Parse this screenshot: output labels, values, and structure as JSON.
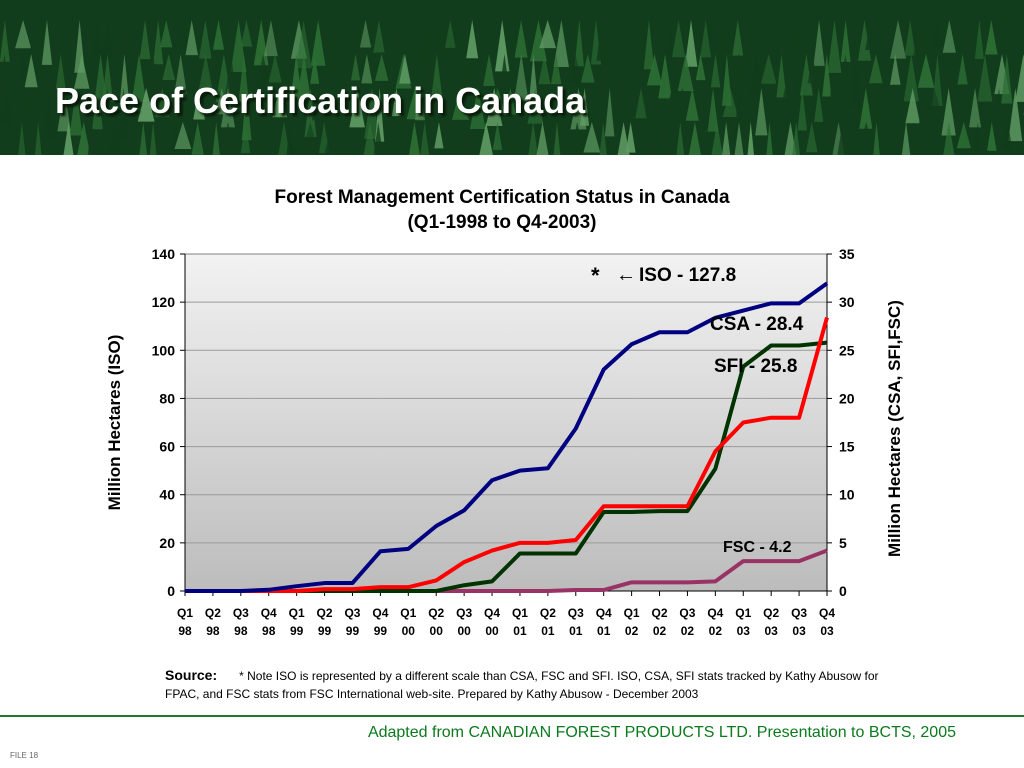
{
  "slide": {
    "title": "Pace of Certification in Canada",
    "header_colors": {
      "dark": "#123d1c",
      "mid": "#2d6e35",
      "light": "#5f9a63"
    }
  },
  "chart_data": {
    "type": "line",
    "title": "Forest Management Certification Status in Canada",
    "subtitle": "(Q1-1998 to Q4-2003)",
    "ylabel_left": "Million Hectares (ISO)",
    "ylabel_right": "Million Hectares (CSA, SFI,FSC)",
    "ylim_left": [
      0,
      140
    ],
    "ylim_right": [
      0,
      35
    ],
    "yticks_left": [
      0,
      20,
      40,
      60,
      80,
      100,
      120,
      140
    ],
    "yticks_right": [
      0,
      5,
      10,
      15,
      20,
      25,
      30,
      35
    ],
    "categories": [
      [
        "Q1",
        "98"
      ],
      [
        "Q2",
        "98"
      ],
      [
        "Q3",
        "98"
      ],
      [
        "Q4",
        "98"
      ],
      [
        "Q1",
        "99"
      ],
      [
        "Q2",
        "99"
      ],
      [
        "Q3",
        "99"
      ],
      [
        "Q4",
        "99"
      ],
      [
        "Q1",
        "00"
      ],
      [
        "Q2",
        "00"
      ],
      [
        "Q3",
        "00"
      ],
      [
        "Q4",
        "00"
      ],
      [
        "Q1",
        "01"
      ],
      [
        "Q2",
        "01"
      ],
      [
        "Q3",
        "01"
      ],
      [
        "Q4",
        "01"
      ],
      [
        "Q1",
        "02"
      ],
      [
        "Q2",
        "02"
      ],
      [
        "Q3",
        "02"
      ],
      [
        "Q4",
        "02"
      ],
      [
        "Q1",
        "03"
      ],
      [
        "Q2",
        "03"
      ],
      [
        "Q3",
        "03"
      ],
      [
        "Q4",
        "03"
      ]
    ],
    "grid": true,
    "legend": "inline labels",
    "series": [
      {
        "name": "ISO",
        "axis": "left",
        "color": "#000080",
        "values": [
          0,
          0,
          0,
          0.5,
          2,
          3.3,
          3.3,
          16.5,
          17.5,
          27,
          33.5,
          46,
          50,
          51,
          67.5,
          92,
          102.5,
          107.5,
          107.5,
          113.5,
          116.5,
          119.5,
          119.5,
          127.8
        ]
      },
      {
        "name": "CSA",
        "axis": "right",
        "color": "#ff0000",
        "values": [
          0,
          0,
          0,
          0,
          0,
          0.2,
          0.2,
          0.4,
          0.4,
          1.1,
          3,
          4.2,
          5,
          5,
          5.3,
          8.8,
          8.8,
          8.8,
          8.8,
          14.5,
          17.5,
          18,
          18,
          28.4
        ]
      },
      {
        "name": "SFI",
        "axis": "right",
        "color": "#003300",
        "values": [
          0,
          0,
          0,
          0,
          0,
          0,
          0,
          0,
          0,
          0,
          0.6,
          1,
          3.9,
          3.9,
          3.9,
          8.2,
          8.2,
          8.3,
          8.3,
          12.7,
          23.3,
          25.5,
          25.5,
          25.8
        ]
      },
      {
        "name": "FSC",
        "axis": "right",
        "color": "#993366",
        "values": [
          0,
          0,
          0,
          0,
          0,
          0,
          0,
          0,
          0,
          0,
          0,
          0,
          0,
          0,
          0.1,
          0.1,
          0.9,
          0.9,
          0.9,
          1,
          3.1,
          3.1,
          3.1,
          4.2
        ]
      }
    ],
    "annotations": [
      {
        "id": "iso",
        "text": "ISO  - 127.8",
        "color": "#000000",
        "prefix": "*",
        "arrow": "←"
      },
      {
        "id": "csa",
        "text": "CSA  - 28.4",
        "color": "#000000"
      },
      {
        "id": "sfi",
        "text": "SFI - 25.8",
        "color": "#000000"
      },
      {
        "id": "fsc",
        "text": "FSC - 4.2",
        "color": "#000000"
      }
    ]
  },
  "source": {
    "label": "Source:",
    "text": "* Note ISO is represented by a different scale than CSA, FSC and SFI.  ISO, CSA, SFI stats tracked by Kathy Abusow for FPAC, and FSC stats from FSC International web-site.  Prepared by Kathy Abusow - December 2003"
  },
  "footer": {
    "caption": "Adapted from CANADIAN FOREST PRODUCTS LTD. Presentation to BCTS, 2005",
    "caption_color": "#0b7a1d",
    "file_label": "FILE 18"
  }
}
